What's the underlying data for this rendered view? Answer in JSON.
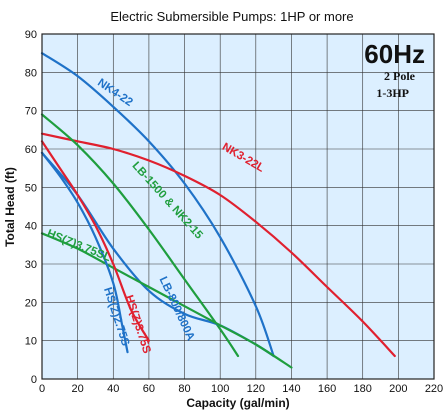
{
  "chart_data": {
    "type": "line",
    "title": "Electric Submersible Pumps: 1HP or more",
    "xlabel": "Capacity (gal/min)",
    "ylabel": "Total Head (ft)",
    "xlim": [
      0,
      220
    ],
    "ylim": [
      0,
      90
    ],
    "x_ticks": [
      0,
      20,
      40,
      60,
      80,
      100,
      120,
      140,
      160,
      180,
      200,
      220
    ],
    "y_ticks": [
      0,
      10,
      20,
      30,
      40,
      50,
      60,
      70,
      80,
      90
    ],
    "grid": true,
    "background_color": "#dcefff",
    "annotations": {
      "frequency": "60Hz",
      "poles": "2 Pole",
      "hp_range": "1-3HP"
    },
    "series": [
      {
        "name": "NK4-22",
        "color": "#1f72c8",
        "label_pos": [
          40,
          74
        ],
        "label_angle": 34,
        "points": [
          [
            0,
            85
          ],
          [
            20,
            79
          ],
          [
            40,
            71
          ],
          [
            60,
            62
          ],
          [
            80,
            51
          ],
          [
            100,
            37
          ],
          [
            120,
            19
          ],
          [
            130,
            6
          ]
        ]
      },
      {
        "name": "NK3-22L",
        "color": "#e0202f",
        "label_pos": [
          112,
          57
        ],
        "label_angle": 30,
        "points": [
          [
            0,
            64
          ],
          [
            20,
            62
          ],
          [
            40,
            60
          ],
          [
            60,
            57
          ],
          [
            80,
            53
          ],
          [
            100,
            48
          ],
          [
            120,
            41
          ],
          [
            140,
            33
          ],
          [
            160,
            24
          ],
          [
            180,
            15
          ],
          [
            198,
            6
          ]
        ]
      },
      {
        "name": "LB-1500 & NK2-15",
        "color": "#1f9e3e",
        "label_pos": [
          69,
          46
        ],
        "label_angle": 48,
        "points": [
          [
            0,
            69
          ],
          [
            20,
            61
          ],
          [
            40,
            51
          ],
          [
            60,
            39
          ],
          [
            80,
            26
          ],
          [
            100,
            13
          ],
          [
            110,
            6
          ]
        ]
      },
      {
        "name": "LB-800/800A",
        "color": "#1f72c8",
        "label_pos": [
          74,
          18
        ],
        "label_angle": 65,
        "points": [
          [
            0,
            59
          ],
          [
            20,
            48
          ],
          [
            40,
            34
          ],
          [
            60,
            23
          ],
          [
            80,
            17
          ],
          [
            100,
            14
          ],
          [
            120,
            9
          ],
          [
            130,
            6
          ]
        ]
      },
      {
        "name": "HS(Z)3.75SL",
        "color": "#1f9e3e",
        "label_pos": [
          20,
          34
        ],
        "label_angle": 22,
        "points": [
          [
            0,
            38
          ],
          [
            20,
            34
          ],
          [
            40,
            29
          ],
          [
            60,
            24
          ],
          [
            80,
            19
          ],
          [
            100,
            14
          ],
          [
            120,
            9
          ],
          [
            140,
            3
          ]
        ]
      },
      {
        "name": "HS(Z)3.75S",
        "color": "#e0202f",
        "label_pos": [
          52,
          14
        ],
        "label_angle": 72,
        "points": [
          [
            0,
            62
          ],
          [
            10,
            55
          ],
          [
            20,
            48
          ],
          [
            30,
            40
          ],
          [
            40,
            30
          ],
          [
            50,
            18
          ],
          [
            60,
            10
          ]
        ]
      },
      {
        "name": "HS(Z)2.75S",
        "color": "#1f72c8",
        "label_pos": [
          40,
          16
        ],
        "label_angle": 72,
        "points": [
          [
            0,
            59
          ],
          [
            10,
            53
          ],
          [
            20,
            46
          ],
          [
            30,
            37
          ],
          [
            40,
            25
          ],
          [
            45,
            14
          ],
          [
            48,
            7
          ]
        ]
      }
    ]
  }
}
